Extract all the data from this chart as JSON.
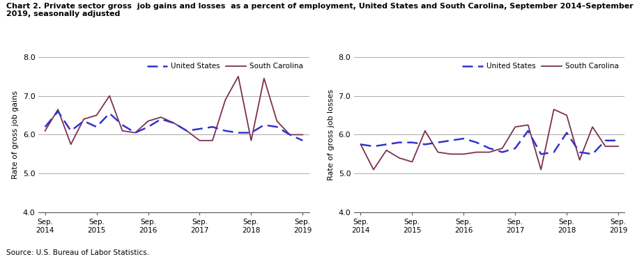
{
  "title_line1": "Chart 2. Private sector gross  job gains and losses  as a percent of employment, United States and South Carolina, September 2014–September",
  "title_line2": "2019, seasonally adjusted",
  "source": "Source: U.S. Bureau of Labor Statistics.",
  "left_ylabel": "Rate of gross job gains",
  "right_ylabel": "Rate of gross job losses",
  "x_labels": [
    "Sep.\n2014",
    "Sep.\n2015",
    "Sep.\n2016",
    "Sep.\n2017",
    "Sep.\n2018",
    "Sep.\n2019"
  ],
  "x_tick_indices": [
    0,
    4,
    8,
    12,
    16,
    20
  ],
  "ylim": [
    4.0,
    8.0
  ],
  "yticks": [
    4.0,
    5.0,
    6.0,
    7.0,
    8.0
  ],
  "gains_us": [
    6.2,
    6.6,
    6.1,
    6.35,
    6.2,
    6.55,
    6.25,
    6.05,
    6.2,
    6.4,
    6.3,
    6.1,
    6.15,
    6.2,
    6.1,
    6.05,
    6.05,
    6.25,
    6.2,
    6.0,
    5.85
  ],
  "gains_sc": [
    6.1,
    6.65,
    5.75,
    6.4,
    6.5,
    7.0,
    6.1,
    6.05,
    6.35,
    6.45,
    6.3,
    6.1,
    5.85,
    5.85,
    6.9,
    7.5,
    5.85,
    7.45,
    6.35,
    6.0,
    6.0
  ],
  "losses_us": [
    5.75,
    5.7,
    5.75,
    5.8,
    5.8,
    5.75,
    5.8,
    5.85,
    5.9,
    5.8,
    5.65,
    5.55,
    5.65,
    6.1,
    5.5,
    5.55,
    6.05,
    5.55,
    5.5,
    5.85,
    5.85
  ],
  "losses_sc": [
    5.75,
    5.1,
    5.6,
    5.4,
    5.3,
    6.1,
    5.55,
    5.5,
    5.5,
    5.55,
    5.55,
    5.65,
    6.2,
    6.25,
    5.1,
    6.65,
    6.5,
    5.35,
    6.2,
    5.7,
    5.7
  ],
  "us_color": "#3333cc",
  "sc_color": "#7b3050",
  "grid_color": "#aaaaaa",
  "legend_labels": [
    "United States",
    "South Carolina"
  ]
}
